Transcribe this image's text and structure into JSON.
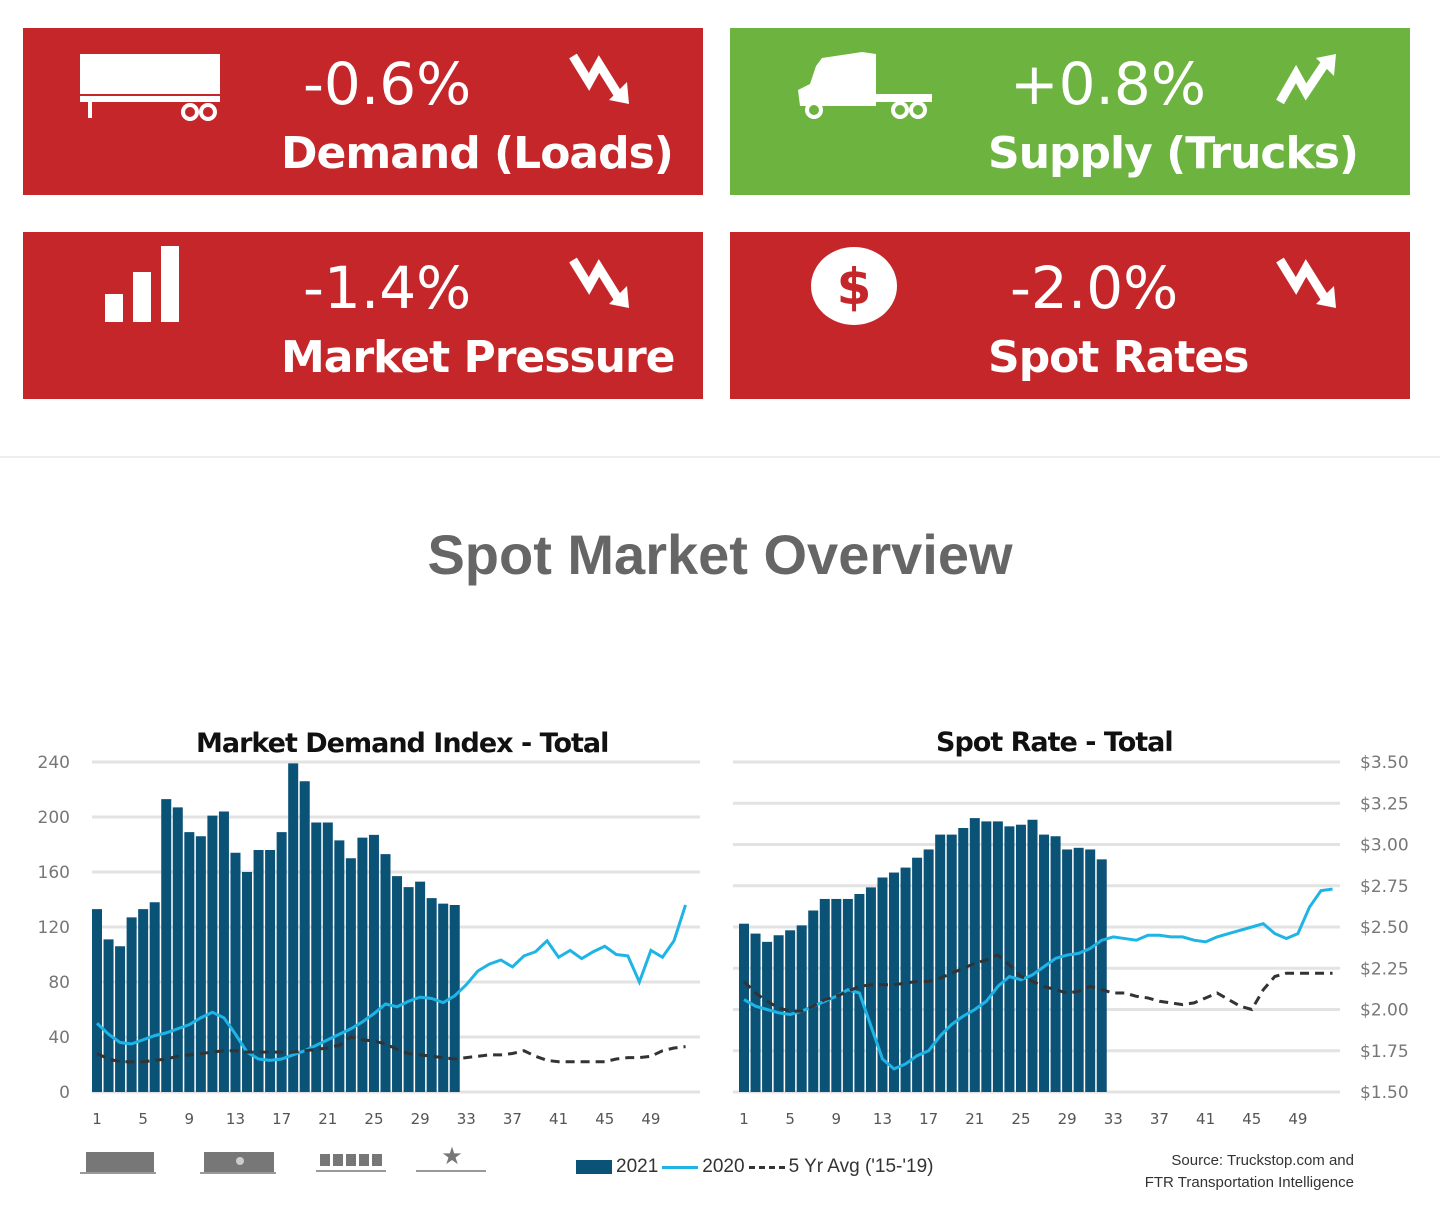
{
  "cards": [
    {
      "value": "-0.6%",
      "label": "Demand (Loads)",
      "icon": "trailer-icon",
      "trend": "down",
      "color": "#c4262a"
    },
    {
      "value": "+0.8%",
      "label": "Supply (Trucks)",
      "icon": "truck-icon",
      "trend": "up",
      "color": "#6cb33f"
    },
    {
      "value": "-1.4%",
      "label": "Market Pressure",
      "icon": "bar-chart-icon",
      "trend": "down",
      "color": "#c4262a"
    },
    {
      "value": "-2.0%",
      "label": "Spot Rates",
      "icon": "dollar-icon",
      "trend": "down",
      "color": "#c4262a"
    }
  ],
  "section_title": "Spot Market Overview",
  "legend": {
    "s2021": "2021",
    "s2020": "2020",
    "avg": "5 Yr Avg ('15-'19)"
  },
  "source": [
    "Source: Truckstop.com and",
    "FTR Transportation Intelligence"
  ],
  "colors": {
    "bars": "#0b5277",
    "line2020": "#1fb4e6",
    "avg": "#333333",
    "grid": "#e3e3e3"
  },
  "chart_data": [
    {
      "type": "bar+line",
      "title": "Market Demand Index - Total",
      "ylim": [
        0,
        240
      ],
      "yticks": [
        "0",
        "40",
        "80",
        "120",
        "160",
        "200",
        "240"
      ],
      "ytick_values": [
        0,
        40,
        80,
        120,
        160,
        200,
        240
      ],
      "xticks": [
        "1",
        "5",
        "9",
        "13",
        "17",
        "21",
        "25",
        "29",
        "33",
        "37",
        "41",
        "45",
        "49"
      ],
      "series": [
        {
          "name": "2021",
          "type": "bar",
          "values": [
            133,
            111,
            106,
            127,
            133,
            138,
            213,
            207,
            189,
            186,
            201,
            204,
            174,
            160,
            176,
            176,
            189,
            239,
            226,
            196,
            196,
            183,
            170,
            185,
            187,
            173,
            157,
            149,
            153,
            141,
            137,
            136
          ]
        },
        {
          "name": "2020",
          "type": "line",
          "values": [
            50,
            42,
            36,
            35,
            38,
            41,
            43,
            46,
            49,
            54,
            58,
            54,
            42,
            29,
            24,
            23,
            24,
            27,
            30,
            34,
            38,
            42,
            46,
            51,
            57,
            64,
            62,
            66,
            69,
            68,
            65,
            70,
            78,
            88,
            93,
            96,
            91,
            99,
            102,
            110,
            98,
            103,
            97,
            102,
            106,
            100,
            99,
            80,
            103,
            98,
            110,
            136
          ]
        },
        {
          "name": "5 Yr Avg ('15-'19)",
          "type": "dashed",
          "values": [
            28,
            24,
            22,
            22,
            22,
            23,
            24,
            26,
            27,
            28,
            29,
            30,
            30,
            29,
            29,
            29,
            29,
            29,
            30,
            31,
            32,
            34,
            40,
            38,
            37,
            35,
            31,
            28,
            27,
            26,
            25,
            24,
            25,
            26,
            27,
            27,
            28,
            30,
            26,
            23,
            22,
            22,
            22,
            22,
            22,
            24,
            25,
            25,
            26,
            30,
            32,
            33
          ]
        }
      ]
    },
    {
      "type": "bar+line",
      "title": "Spot Rate - Total",
      "ylim": [
        1.5,
        3.5
      ],
      "yticks": [
        "$1.50",
        "$1.75",
        "$2.00",
        "$2.25",
        "$2.50",
        "$2.75",
        "$3.00",
        "$3.25",
        "$3.50"
      ],
      "ytick_values": [
        1.5,
        1.75,
        2,
        2.25,
        2.5,
        2.75,
        3,
        3.25,
        3.5
      ],
      "xticks": [
        "1",
        "5",
        "9",
        "13",
        "17",
        "21",
        "25",
        "29",
        "33",
        "37",
        "41",
        "45",
        "49"
      ],
      "series": [
        {
          "name": "2021",
          "type": "bar",
          "values": [
            2.52,
            2.46,
            2.41,
            2.45,
            2.48,
            2.51,
            2.6,
            2.67,
            2.67,
            2.67,
            2.7,
            2.74,
            2.8,
            2.83,
            2.86,
            2.92,
            2.97,
            3.06,
            3.06,
            3.1,
            3.16,
            3.14,
            3.14,
            3.11,
            3.12,
            3.15,
            3.06,
            3.05,
            2.97,
            2.98,
            2.97,
            2.91
          ]
        },
        {
          "name": "2020",
          "type": "line",
          "values": [
            2.06,
            2.02,
            2.0,
            1.98,
            1.97,
            1.99,
            2.02,
            2.05,
            2.08,
            2.12,
            2.1,
            1.9,
            1.7,
            1.64,
            1.67,
            1.72,
            1.75,
            1.84,
            1.91,
            1.96,
            2.0,
            2.05,
            2.14,
            2.2,
            2.18,
            2.21,
            2.26,
            2.31,
            2.33,
            2.34,
            2.37,
            2.42,
            2.44,
            2.43,
            2.42,
            2.45,
            2.45,
            2.44,
            2.44,
            2.42,
            2.41,
            2.44,
            2.46,
            2.48,
            2.5,
            2.52,
            2.46,
            2.43,
            2.46,
            2.62,
            2.72,
            2.73
          ]
        },
        {
          "name": "5 Yr Avg ('15-'19)",
          "type": "dashed",
          "values": [
            2.17,
            2.1,
            2.05,
            2.01,
            1.99,
            1.99,
            2.02,
            2.06,
            2.08,
            2.11,
            2.14,
            2.15,
            2.15,
            2.15,
            2.16,
            2.17,
            2.17,
            2.19,
            2.22,
            2.25,
            2.28,
            2.3,
            2.33,
            2.27,
            2.2,
            2.17,
            2.14,
            2.12,
            2.1,
            2.11,
            2.14,
            2.12,
            2.1,
            2.1,
            2.08,
            2.07,
            2.05,
            2.04,
            2.03,
            2.04,
            2.07,
            2.1,
            2.06,
            2.02,
            2.0,
            2.12,
            2.2,
            2.22,
            2.22,
            2.22,
            2.22,
            2.22
          ]
        }
      ]
    }
  ]
}
